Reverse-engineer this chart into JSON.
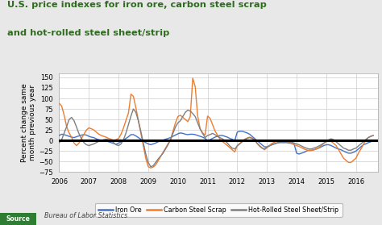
{
  "title_line1": "U.S. price indexes for iron ore, carbon steel scrap",
  "title_line2": "and hot-rolled steel sheet/strip",
  "title_color": "#2e6b1e",
  "ylabel": "Percent change same\nmonth previous year",
  "ylabel_fontsize": 6.5,
  "source_label": "Bureau of Labor Statistics",
  "source_tag": "Source",
  "source_tag_color": "#2e7d32",
  "ylim": [
    -75,
    160
  ],
  "yticks": [
    -75,
    -50,
    -25,
    0,
    25,
    50,
    75,
    100,
    125,
    150
  ],
  "background_color": "#e8e8e8",
  "plot_bg_color": "#ffffff",
  "grid_color": "#cccccc",
  "zero_line_color": "#000000",
  "legend_labels": [
    "Iron Ore",
    "Carbon Steel Scrap",
    "Hot-Rolled Steel Sheet/Strip"
  ],
  "line_colors": [
    "#4472c4",
    "#ed7d31",
    "#7f7f7f"
  ],
  "iron_ore": {
    "dates": [
      2006.0,
      2006.083,
      2006.167,
      2006.25,
      2006.333,
      2006.417,
      2006.5,
      2006.583,
      2006.667,
      2006.75,
      2006.833,
      2006.917,
      2007.0,
      2007.083,
      2007.167,
      2007.25,
      2007.333,
      2007.417,
      2007.5,
      2007.583,
      2007.667,
      2007.75,
      2007.833,
      2007.917,
      2008.0,
      2008.083,
      2008.167,
      2008.25,
      2008.333,
      2008.417,
      2008.5,
      2008.583,
      2008.667,
      2008.75,
      2008.833,
      2008.917,
      2009.0,
      2009.083,
      2009.167,
      2009.25,
      2009.333,
      2009.417,
      2009.5,
      2009.583,
      2009.667,
      2009.75,
      2009.833,
      2009.917,
      2010.0,
      2010.083,
      2010.167,
      2010.25,
      2010.333,
      2010.417,
      2010.5,
      2010.583,
      2010.667,
      2010.75,
      2010.833,
      2010.917,
      2011.0,
      2011.083,
      2011.167,
      2011.25,
      2011.333,
      2011.417,
      2011.5,
      2011.583,
      2011.667,
      2011.75,
      2011.833,
      2011.917,
      2012.0,
      2012.083,
      2012.167,
      2012.25,
      2012.333,
      2012.417,
      2012.5,
      2012.583,
      2012.667,
      2012.75,
      2012.833,
      2012.917,
      2013.0,
      2013.083,
      2013.167,
      2013.25,
      2013.333,
      2013.417,
      2013.5,
      2013.583,
      2013.667,
      2013.75,
      2013.833,
      2013.917,
      2014.0,
      2014.083,
      2014.167,
      2014.25,
      2014.333,
      2014.417,
      2014.5,
      2014.583,
      2014.667,
      2014.75,
      2014.833,
      2014.917,
      2015.0,
      2015.083,
      2015.167,
      2015.25,
      2015.333,
      2015.417,
      2015.5,
      2015.583,
      2015.667,
      2015.75,
      2015.833,
      2015.917,
      2016.0,
      2016.083,
      2016.167,
      2016.25,
      2016.333,
      2016.417,
      2016.5,
      2016.583
    ],
    "values": [
      12,
      15,
      14,
      12,
      10,
      8,
      7,
      9,
      11,
      13,
      14,
      13,
      10,
      8,
      7,
      4,
      2,
      1,
      0,
      -1,
      -3,
      -5,
      -7,
      -9,
      -6,
      -3,
      1,
      5,
      9,
      14,
      14,
      11,
      7,
      3,
      -1,
      -5,
      -8,
      -10,
      -8,
      -6,
      -3,
      -1,
      1,
      3,
      5,
      7,
      10,
      13,
      16,
      18,
      17,
      15,
      14,
      15,
      15,
      14,
      12,
      10,
      8,
      5,
      0,
      2,
      5,
      8,
      10,
      12,
      12,
      10,
      8,
      5,
      3,
      0,
      20,
      22,
      22,
      20,
      18,
      15,
      10,
      5,
      0,
      -5,
      -10,
      -15,
      -15,
      -12,
      -10,
      -8,
      -6,
      -5,
      -5,
      -5,
      -5,
      -6,
      -7,
      -8,
      -30,
      -32,
      -30,
      -28,
      -25,
      -23,
      -23,
      -22,
      -20,
      -18,
      -15,
      -12,
      -10,
      -10,
      -12,
      -15,
      -18,
      -20,
      -22,
      -25,
      -28,
      -30,
      -30,
      -28,
      -25,
      -20,
      -15,
      -10,
      -8,
      -5,
      -3,
      0
    ]
  },
  "carbon_steel": {
    "dates": [
      2006.0,
      2006.083,
      2006.167,
      2006.25,
      2006.333,
      2006.417,
      2006.5,
      2006.583,
      2006.667,
      2006.75,
      2006.833,
      2006.917,
      2007.0,
      2007.083,
      2007.167,
      2007.25,
      2007.333,
      2007.417,
      2007.5,
      2007.583,
      2007.667,
      2007.75,
      2007.833,
      2007.917,
      2008.0,
      2008.083,
      2008.167,
      2008.25,
      2008.333,
      2008.417,
      2008.5,
      2008.583,
      2008.667,
      2008.75,
      2008.833,
      2008.917,
      2009.0,
      2009.083,
      2009.167,
      2009.25,
      2009.333,
      2009.417,
      2009.5,
      2009.583,
      2009.667,
      2009.75,
      2009.833,
      2009.917,
      2010.0,
      2010.083,
      2010.167,
      2010.25,
      2010.333,
      2010.417,
      2010.5,
      2010.583,
      2010.667,
      2010.75,
      2010.833,
      2010.917,
      2011.0,
      2011.083,
      2011.167,
      2011.25,
      2011.333,
      2011.417,
      2011.5,
      2011.583,
      2011.667,
      2011.75,
      2011.833,
      2011.917,
      2012.0,
      2012.083,
      2012.167,
      2012.25,
      2012.333,
      2012.417,
      2012.5,
      2012.583,
      2012.667,
      2012.75,
      2012.833,
      2012.917,
      2013.0,
      2013.083,
      2013.167,
      2013.25,
      2013.333,
      2013.417,
      2013.5,
      2013.583,
      2013.667,
      2013.75,
      2013.833,
      2013.917,
      2014.0,
      2014.083,
      2014.167,
      2014.25,
      2014.333,
      2014.417,
      2014.5,
      2014.583,
      2014.667,
      2014.75,
      2014.833,
      2014.917,
      2015.0,
      2015.083,
      2015.167,
      2015.25,
      2015.333,
      2015.417,
      2015.5,
      2015.583,
      2015.667,
      2015.75,
      2015.833,
      2015.917,
      2016.0,
      2016.083,
      2016.167,
      2016.25,
      2016.333,
      2016.417,
      2016.5,
      2016.583
    ],
    "values": [
      88,
      82,
      60,
      33,
      18,
      8,
      -6,
      -12,
      -6,
      5,
      15,
      25,
      30,
      28,
      25,
      20,
      15,
      12,
      10,
      8,
      5,
      3,
      0,
      2,
      5,
      15,
      30,
      48,
      65,
      110,
      105,
      78,
      48,
      18,
      -12,
      -42,
      -62,
      -65,
      -63,
      -58,
      -48,
      -38,
      -28,
      -18,
      -8,
      2,
      22,
      42,
      57,
      60,
      55,
      50,
      45,
      57,
      148,
      128,
      58,
      28,
      18,
      13,
      58,
      53,
      38,
      23,
      13,
      3,
      -2,
      -7,
      -12,
      -17,
      -22,
      -27,
      -12,
      -7,
      -2,
      3,
      6,
      8,
      6,
      3,
      -7,
      -12,
      -17,
      -22,
      -17,
      -12,
      -7,
      -4,
      -2,
      0,
      1,
      0,
      -2,
      -4,
      -7,
      -10,
      -12,
      -14,
      -17,
      -20,
      -22,
      -24,
      -24,
      -22,
      -20,
      -17,
      -12,
      -7,
      -2,
      1,
      -2,
      -7,
      -12,
      -22,
      -32,
      -42,
      -47,
      -52,
      -52,
      -47,
      -42,
      -30,
      -20,
      -10,
      2,
      7,
      10,
      12
    ]
  },
  "hot_rolled": {
    "dates": [
      2006.0,
      2006.083,
      2006.167,
      2006.25,
      2006.333,
      2006.417,
      2006.5,
      2006.583,
      2006.667,
      2006.75,
      2006.833,
      2006.917,
      2007.0,
      2007.083,
      2007.167,
      2007.25,
      2007.333,
      2007.417,
      2007.5,
      2007.583,
      2007.667,
      2007.75,
      2007.833,
      2007.917,
      2008.0,
      2008.083,
      2008.167,
      2008.25,
      2008.333,
      2008.417,
      2008.5,
      2008.583,
      2008.667,
      2008.75,
      2008.833,
      2008.917,
      2009.0,
      2009.083,
      2009.167,
      2009.25,
      2009.333,
      2009.417,
      2009.5,
      2009.583,
      2009.667,
      2009.75,
      2009.833,
      2009.917,
      2010.0,
      2010.083,
      2010.167,
      2010.25,
      2010.333,
      2010.417,
      2010.5,
      2010.583,
      2010.667,
      2010.75,
      2010.833,
      2010.917,
      2011.0,
      2011.083,
      2011.167,
      2011.25,
      2011.333,
      2011.417,
      2011.5,
      2011.583,
      2011.667,
      2011.75,
      2011.833,
      2011.917,
      2012.0,
      2012.083,
      2012.167,
      2012.25,
      2012.333,
      2012.417,
      2012.5,
      2012.583,
      2012.667,
      2012.75,
      2012.833,
      2012.917,
      2013.0,
      2013.083,
      2013.167,
      2013.25,
      2013.333,
      2013.417,
      2013.5,
      2013.583,
      2013.667,
      2013.75,
      2013.833,
      2013.917,
      2014.0,
      2014.083,
      2014.167,
      2014.25,
      2014.333,
      2014.417,
      2014.5,
      2014.583,
      2014.667,
      2014.75,
      2014.833,
      2014.917,
      2015.0,
      2015.083,
      2015.167,
      2015.25,
      2015.333,
      2015.417,
      2015.5,
      2015.583,
      2015.667,
      2015.75,
      2015.833,
      2015.917,
      2016.0,
      2016.083,
      2016.167,
      2016.25,
      2016.333,
      2016.417,
      2016.5,
      2016.583
    ],
    "values": [
      -5,
      2,
      18,
      33,
      50,
      55,
      47,
      32,
      16,
      5,
      -5,
      -10,
      -12,
      -10,
      -8,
      -5,
      -2,
      0,
      2,
      3,
      2,
      0,
      -5,
      -10,
      -12,
      -8,
      2,
      18,
      38,
      58,
      75,
      67,
      47,
      22,
      -5,
      -32,
      -52,
      -62,
      -60,
      -52,
      -44,
      -37,
      -30,
      -20,
      -10,
      2,
      17,
      32,
      42,
      47,
      57,
      67,
      72,
      70,
      64,
      57,
      42,
      27,
      17,
      7,
      12,
      14,
      17,
      14,
      10,
      7,
      4,
      0,
      -6,
      -13,
      -18,
      -20,
      -13,
      -8,
      -3,
      2,
      5,
      7,
      5,
      2,
      -6,
      -13,
      -18,
      -20,
      -16,
      -13,
      -10,
      -8,
      -6,
      -4,
      -3,
      -3,
      -3,
      -3,
      -4,
      -6,
      -8,
      -10,
      -13,
      -16,
      -18,
      -20,
      -20,
      -18,
      -16,
      -13,
      -10,
      -6,
      -3,
      2,
      4,
      2,
      -3,
      -8,
      -13,
      -18,
      -20,
      -23,
      -23,
      -20,
      -18,
      -13,
      -8,
      -3,
      2,
      7,
      10,
      12
    ]
  }
}
